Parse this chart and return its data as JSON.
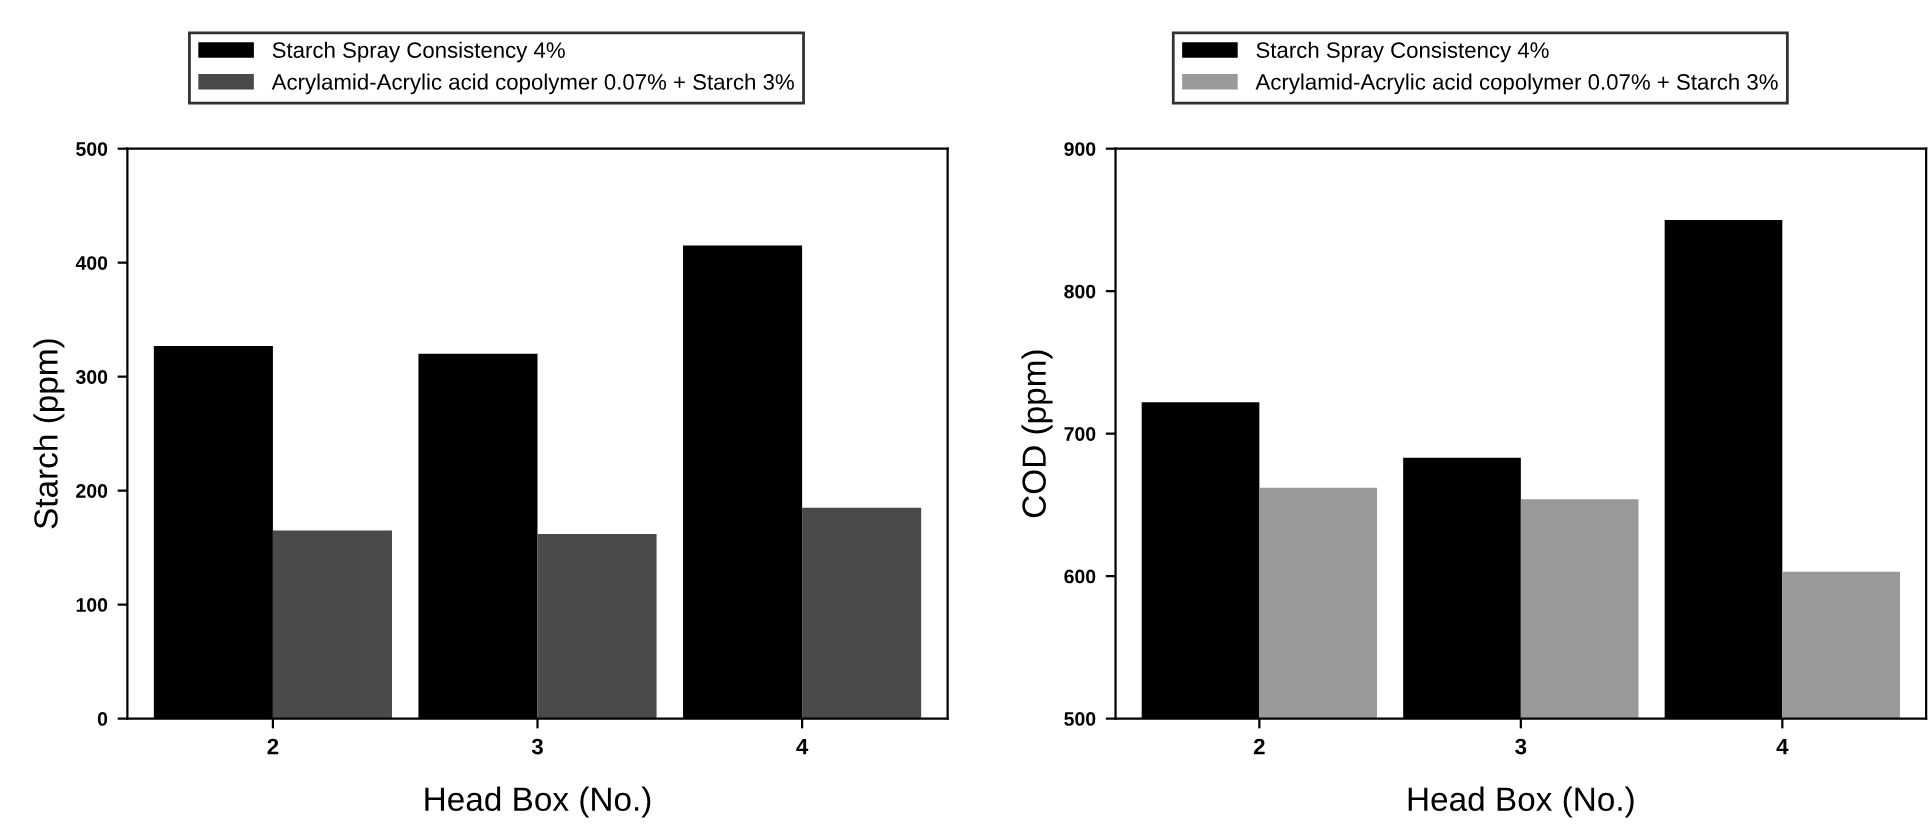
{
  "chart_data": [
    {
      "type": "bar",
      "xlabel": "Head Box (No.)",
      "ylabel": "Starch (ppm)",
      "categories": [
        "2",
        "3",
        "4"
      ],
      "ylim": [
        0,
        500
      ],
      "yticks": [
        0,
        100,
        200,
        300,
        400,
        500
      ],
      "legend": "top",
      "grid": false,
      "series": [
        {
          "name": "Starch Spray Consistency 4%",
          "color": "#000000",
          "values": [
            327,
            320,
            415
          ]
        },
        {
          "name": "Acrylamid-Acrylic acid copolymer 0.07% + Starch 3%",
          "color": "#4a4a4a",
          "values": [
            165,
            162,
            185
          ]
        }
      ]
    },
    {
      "type": "bar",
      "xlabel": "Head Box (No.)",
      "ylabel": "COD (ppm)",
      "categories": [
        "2",
        "3",
        "4"
      ],
      "ylim": [
        500,
        900
      ],
      "yticks": [
        500,
        600,
        700,
        800,
        900
      ],
      "legend": "top",
      "grid": false,
      "series": [
        {
          "name": "Starch Spray Consistency 4%",
          "color": "#000000",
          "values": [
            722,
            683,
            850
          ]
        },
        {
          "name": "Acrylamid-Acrylic acid copolymer 0.07% + Starch 3%",
          "color": "#9a9a9a",
          "values": [
            662,
            654,
            603
          ]
        }
      ]
    }
  ]
}
